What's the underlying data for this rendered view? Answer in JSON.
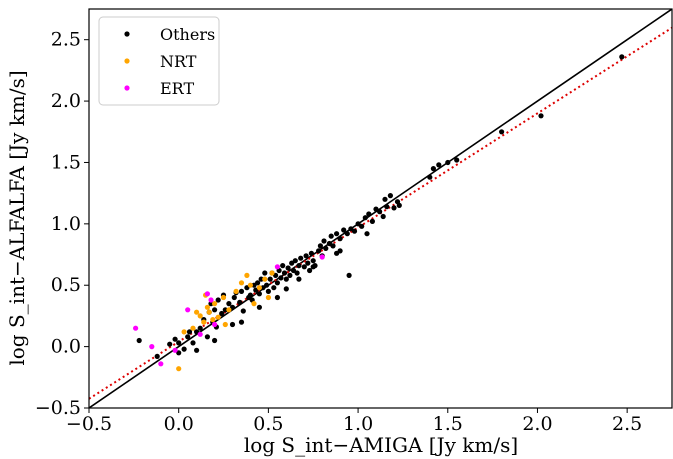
{
  "chart_data": {
    "type": "scatter",
    "xlabel": "log S_int−AMIGA [Jy km/s]",
    "ylabel": "log S_int−ALFALFA [Jy km/s]",
    "xlim": [
      -0.5,
      2.75
    ],
    "ylim": [
      -0.5,
      2.75
    ],
    "x_ticks": [
      -0.5,
      0.0,
      0.5,
      1.0,
      1.5,
      2.0,
      2.5
    ],
    "x_tick_labels": [
      "−0.5",
      "0.0",
      "0.5",
      "1.0",
      "1.5",
      "2.0",
      "2.5"
    ],
    "y_ticks": [
      -0.5,
      0.0,
      0.5,
      1.0,
      1.5,
      2.0,
      2.5
    ],
    "y_tick_labels": [
      "−0.5",
      "0.0",
      "0.5",
      "1.0",
      "1.5",
      "2.0",
      "2.5"
    ],
    "grid": false,
    "legend_position": "top-left",
    "series": [
      {
        "name": "Others",
        "color": "#000000",
        "points": [
          [
            -0.22,
            0.05
          ],
          [
            -0.12,
            -0.08
          ],
          [
            -0.05,
            0.02
          ],
          [
            -0.02,
            0.06
          ],
          [
            0.0,
            0.03
          ],
          [
            0.03,
            -0.02
          ],
          [
            0.05,
            0.08
          ],
          [
            0.06,
            0.12
          ],
          [
            0.08,
            0.03
          ],
          [
            0.1,
            0.12
          ],
          [
            0.12,
            0.15
          ],
          [
            0.14,
            0.22
          ],
          [
            0.16,
            0.08
          ],
          [
            0.17,
            0.28
          ],
          [
            0.18,
            0.35
          ],
          [
            0.19,
            0.2
          ],
          [
            0.2,
            0.3
          ],
          [
            0.21,
            0.16
          ],
          [
            0.22,
            0.38
          ],
          [
            0.24,
            0.27
          ],
          [
            0.25,
            0.42
          ],
          [
            0.26,
            0.3
          ],
          [
            0.28,
            0.35
          ],
          [
            0.3,
            0.32
          ],
          [
            0.31,
            0.4
          ],
          [
            0.32,
            0.44
          ],
          [
            0.34,
            0.36
          ],
          [
            0.35,
            0.45
          ],
          [
            0.36,
            0.29
          ],
          [
            0.38,
            0.48
          ],
          [
            0.39,
            0.4
          ],
          [
            0.4,
            0.42
          ],
          [
            0.41,
            0.38
          ],
          [
            0.42,
            0.5
          ],
          [
            0.43,
            0.46
          ],
          [
            0.44,
            0.52
          ],
          [
            0.45,
            0.43
          ],
          [
            0.46,
            0.55
          ],
          [
            0.47,
            0.48
          ],
          [
            0.48,
            0.6
          ],
          [
            0.49,
            0.5
          ],
          [
            0.5,
            0.45
          ],
          [
            0.51,
            0.55
          ],
          [
            0.52,
            0.6
          ],
          [
            0.53,
            0.48
          ],
          [
            0.54,
            0.58
          ],
          [
            0.55,
            0.52
          ],
          [
            0.56,
            0.62
          ],
          [
            0.57,
            0.56
          ],
          [
            0.58,
            0.66
          ],
          [
            0.59,
            0.6
          ],
          [
            0.6,
            0.55
          ],
          [
            0.61,
            0.64
          ],
          [
            0.62,
            0.58
          ],
          [
            0.63,
            0.68
          ],
          [
            0.64,
            0.62
          ],
          [
            0.65,
            0.7
          ],
          [
            0.66,
            0.6
          ],
          [
            0.67,
            0.66
          ],
          [
            0.68,
            0.72
          ],
          [
            0.7,
            0.65
          ],
          [
            0.71,
            0.74
          ],
          [
            0.72,
            0.68
          ],
          [
            0.73,
            0.62
          ],
          [
            0.74,
            0.76
          ],
          [
            0.75,
            0.7
          ],
          [
            0.76,
            0.66
          ],
          [
            0.78,
            0.78
          ],
          [
            0.79,
            0.82
          ],
          [
            0.8,
            0.74
          ],
          [
            0.81,
            0.86
          ],
          [
            0.82,
            0.8
          ],
          [
            0.84,
            0.84
          ],
          [
            0.85,
            0.9
          ],
          [
            0.86,
            0.82
          ],
          [
            0.88,
            0.92
          ],
          [
            0.9,
            0.88
          ],
          [
            0.92,
            0.95
          ],
          [
            0.94,
            0.92
          ],
          [
            0.95,
            0.58
          ],
          [
            0.96,
            0.96
          ],
          [
            0.98,
            0.94
          ],
          [
            1.0,
            1.0
          ],
          [
            1.02,
            0.98
          ],
          [
            1.04,
            1.05
          ],
          [
            1.06,
            1.08
          ],
          [
            1.08,
            1.02
          ],
          [
            1.1,
            1.12
          ],
          [
            1.12,
            1.1
          ],
          [
            1.14,
            1.06
          ],
          [
            1.16,
            1.14
          ],
          [
            1.18,
            1.23
          ],
          [
            1.2,
            1.13
          ],
          [
            1.22,
            1.18
          ],
          [
            1.23,
            1.15
          ],
          [
            1.4,
            1.38
          ],
          [
            1.42,
            1.45
          ],
          [
            1.45,
            1.48
          ],
          [
            1.5,
            1.5
          ],
          [
            1.55,
            1.52
          ],
          [
            1.8,
            1.75
          ],
          [
            2.02,
            1.88
          ],
          [
            2.47,
            2.36
          ],
          [
            0.0,
            -0.05
          ],
          [
            0.1,
            -0.03
          ],
          [
            0.2,
            0.05
          ],
          [
            0.35,
            0.2
          ],
          [
            0.6,
            0.47
          ],
          [
            0.67,
            0.55
          ],
          [
            0.88,
            0.76
          ],
          [
            1.05,
            0.92
          ],
          [
            0.3,
            0.18
          ],
          [
            0.45,
            0.32
          ],
          [
            0.55,
            0.4
          ],
          [
            0.75,
            0.65
          ],
          [
            0.9,
            0.78
          ],
          [
            1.15,
            1.2
          ]
        ]
      },
      {
        "name": "NRT",
        "color": "#ffa500",
        "points": [
          [
            0.0,
            -0.18
          ],
          [
            0.03,
            0.12
          ],
          [
            0.08,
            0.15
          ],
          [
            0.12,
            0.25
          ],
          [
            0.14,
            0.2
          ],
          [
            0.16,
            0.32
          ],
          [
            0.17,
            0.28
          ],
          [
            0.2,
            0.35
          ],
          [
            0.22,
            0.24
          ],
          [
            0.25,
            0.4
          ],
          [
            0.28,
            0.3
          ],
          [
            0.32,
            0.45
          ],
          [
            0.35,
            0.52
          ],
          [
            0.38,
            0.58
          ],
          [
            0.4,
            0.5
          ],
          [
            0.42,
            0.35
          ],
          [
            0.45,
            0.48
          ],
          [
            0.48,
            0.55
          ],
          [
            0.5,
            0.4
          ],
          [
            0.52,
            0.6
          ],
          [
            0.15,
            0.42
          ],
          [
            0.1,
            0.28
          ],
          [
            0.19,
            0.22
          ],
          [
            0.26,
            0.18
          ]
        ]
      },
      {
        "name": "ERT",
        "color": "#ff00ff",
        "points": [
          [
            -0.24,
            0.15
          ],
          [
            -0.15,
            0.0
          ],
          [
            -0.1,
            -0.14
          ],
          [
            -0.02,
            -0.03
          ],
          [
            0.05,
            0.3
          ],
          [
            0.12,
            0.1
          ],
          [
            0.16,
            0.43
          ],
          [
            0.18,
            0.38
          ],
          [
            0.2,
            0.18
          ],
          [
            0.55,
            0.65
          ],
          [
            0.8,
            0.73
          ]
        ]
      }
    ],
    "lines": [
      {
        "kind": "one-to-one",
        "color": "#000000",
        "style": "solid",
        "slope": 1.0,
        "intercept": 0.0
      },
      {
        "kind": "fit",
        "color": "#dd0000",
        "style": "dotted",
        "slope": 0.93,
        "intercept": 0.04
      }
    ]
  }
}
